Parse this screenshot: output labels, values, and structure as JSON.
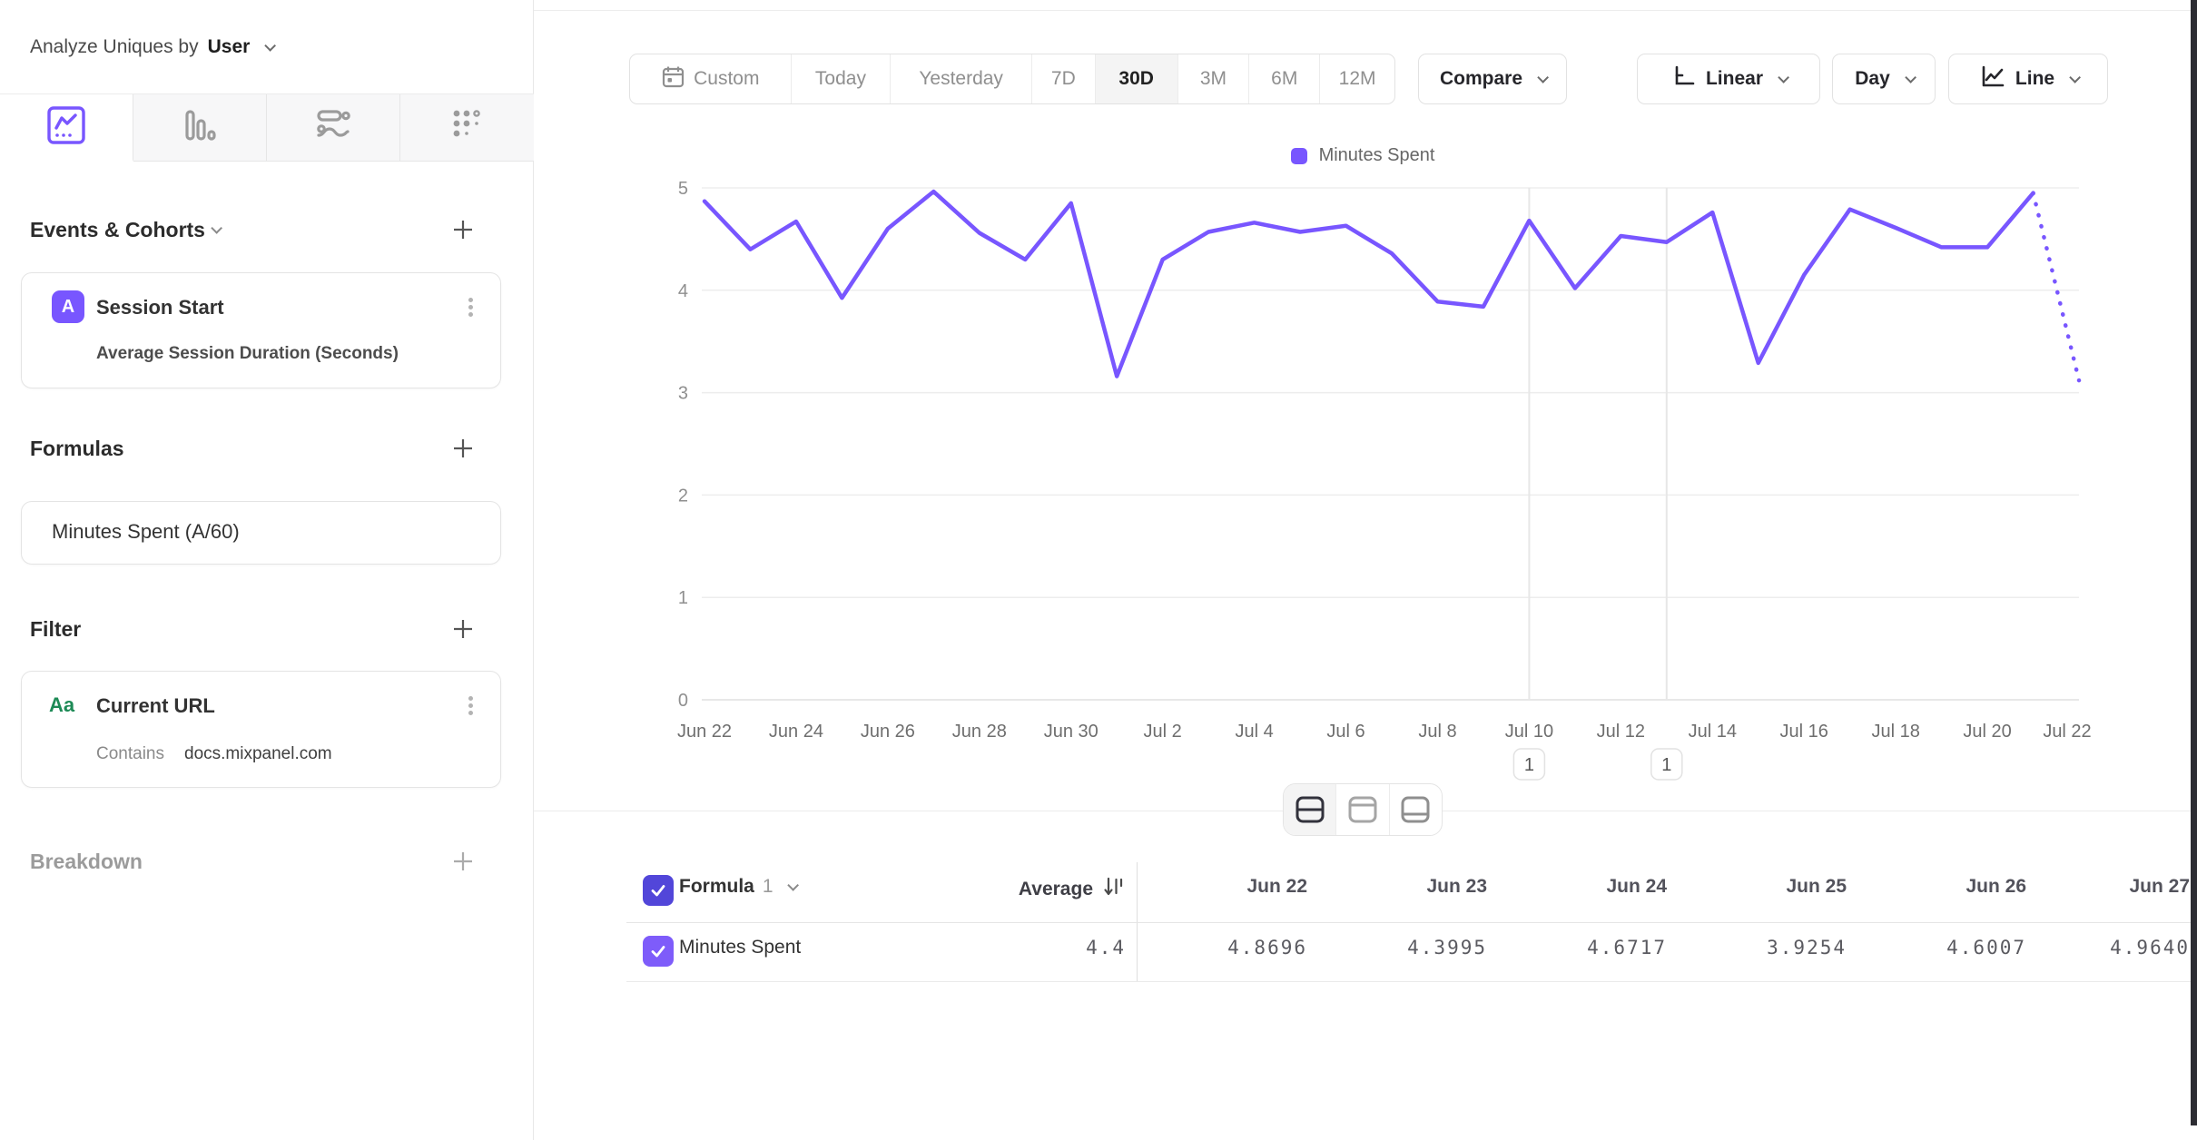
{
  "sidebar": {
    "analyze_label": "Analyze Uniques by",
    "analyze_value": "User",
    "tabs": [
      {
        "icon": "insights-line-chart",
        "active": true
      },
      {
        "icon": "bar-chart",
        "active": false
      },
      {
        "icon": "flows",
        "active": false
      },
      {
        "icon": "retention-grid",
        "active": false
      }
    ],
    "events_section_title": "Events & Cohorts",
    "event_card": {
      "badge": "A",
      "title": "Session Start",
      "subtitle": "Average Session Duration (Seconds)"
    },
    "formulas_section_title": "Formulas",
    "formula_card": {
      "title": "Minutes Spent (A/60)"
    },
    "filter_section_title": "Filter",
    "filter_card": {
      "badge": "Aa",
      "title": "Current URL",
      "operator": "Contains",
      "value": "docs.mixpanel.com"
    },
    "breakdown_section_title": "Breakdown"
  },
  "toolbar": {
    "date_ranges": [
      "Custom",
      "Today",
      "Yesterday",
      "7D",
      "30D",
      "3M",
      "6M",
      "12M"
    ],
    "active_range": "30D",
    "compare_label": "Compare",
    "scale_label": "Linear",
    "interval_label": "Day",
    "chart_type_label": "Line"
  },
  "chart_data": {
    "type": "line",
    "title": "",
    "legend": "Minutes Spent",
    "legend_position": "top-center",
    "line_color": "#7856ff",
    "grid": true,
    "ylim": [
      0,
      5
    ],
    "yticks": [
      0,
      1,
      2,
      3,
      4,
      5
    ],
    "x": [
      "Jun 22",
      "Jun 23",
      "Jun 24",
      "Jun 25",
      "Jun 26",
      "Jun 27",
      "Jun 28",
      "Jun 29",
      "Jun 30",
      "Jul 1",
      "Jul 2",
      "Jul 3",
      "Jul 4",
      "Jul 5",
      "Jul 6",
      "Jul 7",
      "Jul 8",
      "Jul 9",
      "Jul 10",
      "Jul 11",
      "Jul 12",
      "Jul 13",
      "Jul 14",
      "Jul 15",
      "Jul 16",
      "Jul 17",
      "Jul 18",
      "Jul 19",
      "Jul 20",
      "Jul 21",
      "Jul 22"
    ],
    "series": [
      {
        "name": "Minutes Spent",
        "values": [
          4.8696,
          4.3995,
          4.6717,
          3.9254,
          4.6007,
          4.964,
          4.56,
          4.3,
          4.85,
          3.16,
          4.3,
          4.57,
          4.66,
          4.57,
          4.63,
          4.36,
          3.89,
          3.84,
          4.68,
          4.02,
          4.53,
          4.47,
          4.76,
          3.29,
          4.15,
          4.79,
          4.61,
          4.42,
          4.42,
          4.95,
          3.12
        ]
      }
    ],
    "incomplete_last_segment": true,
    "annotations": [
      {
        "x": "Jul 10",
        "count": "1"
      },
      {
        "x": "Jul 13",
        "count": "1"
      }
    ]
  },
  "table": {
    "formula_header": "Formula",
    "formula_index": "1",
    "average_header": "Average",
    "columns": [
      "Jun 22",
      "Jun 23",
      "Jun 24",
      "Jun 25",
      "Jun 26",
      "Jun 27"
    ],
    "rows": [
      {
        "label": "Minutes Spent",
        "average": "4.4",
        "values": [
          "4.8696",
          "4.3995",
          "4.6717",
          "3.9254",
          "4.6007",
          "4.9640"
        ]
      }
    ]
  }
}
